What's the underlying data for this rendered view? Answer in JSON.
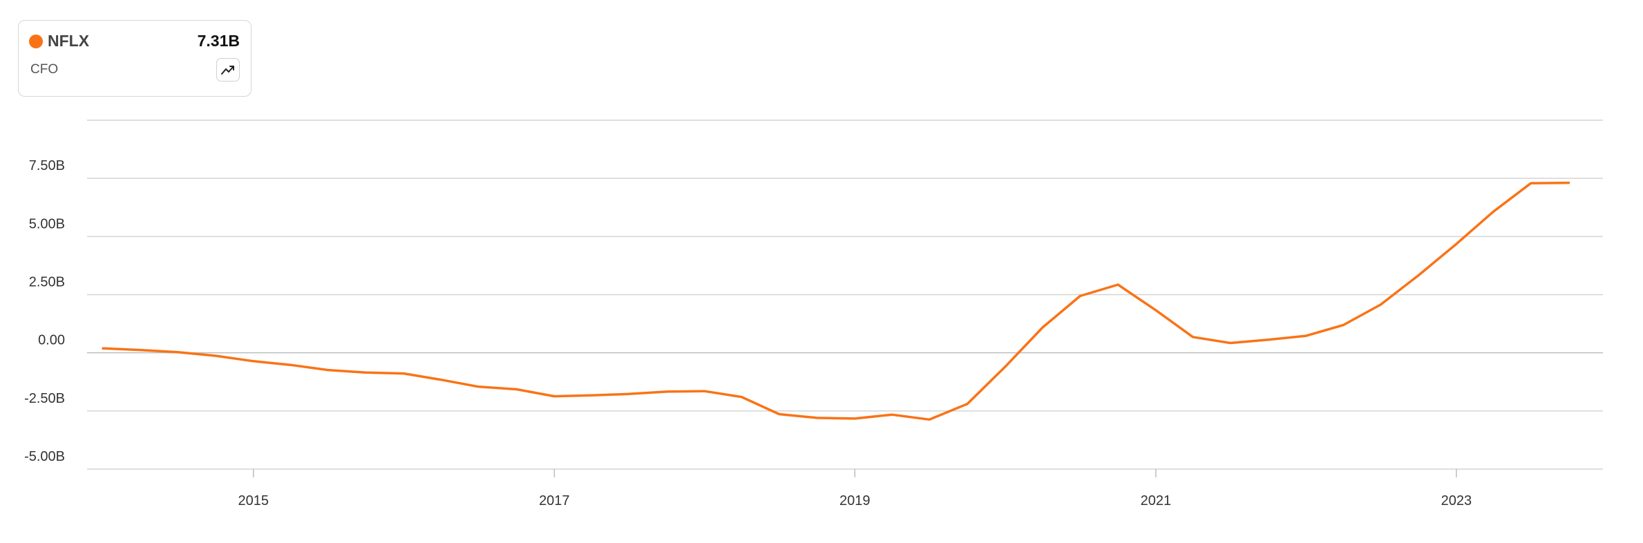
{
  "legend": {
    "ticker": "NFLX",
    "value": "7.31B",
    "metric": "CFO",
    "color": "#f97316",
    "trend_icon": "trending-up-icon"
  },
  "chart_data": {
    "type": "line",
    "title": "",
    "xlabel": "",
    "ylabel": "",
    "ylim": [
      -5.0,
      10.0
    ],
    "y_ticks": [
      {
        "value": 7.5,
        "label": "7.50B"
      },
      {
        "value": 5.0,
        "label": "5.00B"
      },
      {
        "value": 2.5,
        "label": "2.50B"
      },
      {
        "value": 0.0,
        "label": "0.00"
      },
      {
        "value": -2.5,
        "label": "-2.50B"
      },
      {
        "value": -5.0,
        "label": "-5.00B"
      }
    ],
    "x_range": [
      "2013-11-23",
      "2023-12-23"
    ],
    "x_ticks": [
      {
        "value": "2015-01-01",
        "label": "2015"
      },
      {
        "value": "2017-01-01",
        "label": "2017"
      },
      {
        "value": "2019-01-01",
        "label": "2019"
      },
      {
        "value": "2021-01-01",
        "label": "2021"
      },
      {
        "value": "2023-01-01",
        "label": "2023"
      }
    ],
    "grid": true,
    "series": [
      {
        "name": "NFLX",
        "color": "#f97316",
        "points": [
          {
            "x": "2014-01-01",
            "y": 0.19
          },
          {
            "x": "2014-04-01",
            "y": 0.12
          },
          {
            "x": "2014-07-01",
            "y": 0.03
          },
          {
            "x": "2014-10-01",
            "y": -0.13
          },
          {
            "x": "2015-01-01",
            "y": -0.36
          },
          {
            "x": "2015-04-01",
            "y": -0.52
          },
          {
            "x": "2015-07-01",
            "y": -0.74
          },
          {
            "x": "2015-10-01",
            "y": -0.85
          },
          {
            "x": "2016-01-01",
            "y": -0.89
          },
          {
            "x": "2016-04-01",
            "y": -1.16
          },
          {
            "x": "2016-07-01",
            "y": -1.46
          },
          {
            "x": "2016-10-01",
            "y": -1.57
          },
          {
            "x": "2017-01-01",
            "y": -1.87
          },
          {
            "x": "2017-04-01",
            "y": -1.83
          },
          {
            "x": "2017-07-01",
            "y": -1.77
          },
          {
            "x": "2017-10-01",
            "y": -1.67
          },
          {
            "x": "2018-01-01",
            "y": -1.65
          },
          {
            "x": "2018-04-01",
            "y": -1.9
          },
          {
            "x": "2018-07-01",
            "y": -2.64
          },
          {
            "x": "2018-10-01",
            "y": -2.8
          },
          {
            "x": "2019-01-01",
            "y": -2.83
          },
          {
            "x": "2019-04-01",
            "y": -2.66
          },
          {
            "x": "2019-07-01",
            "y": -2.87
          },
          {
            "x": "2019-10-01",
            "y": -2.2
          },
          {
            "x": "2020-01-01",
            "y": -0.6
          },
          {
            "x": "2020-04-01",
            "y": 1.09
          },
          {
            "x": "2020-07-01",
            "y": 2.44
          },
          {
            "x": "2020-10-01",
            "y": 2.93
          },
          {
            "x": "2021-01-01",
            "y": 1.83
          },
          {
            "x": "2021-04-01",
            "y": 0.68
          },
          {
            "x": "2021-07-01",
            "y": 0.42
          },
          {
            "x": "2021-10-01",
            "y": 0.56
          },
          {
            "x": "2022-01-01",
            "y": 0.73
          },
          {
            "x": "2022-04-01",
            "y": 1.19
          },
          {
            "x": "2022-07-01",
            "y": 2.07
          },
          {
            "x": "2022-10-01",
            "y": 3.33
          },
          {
            "x": "2023-01-01",
            "y": 4.68
          },
          {
            "x": "2023-04-01",
            "y": 6.07
          },
          {
            "x": "2023-07-01",
            "y": 7.29
          },
          {
            "x": "2023-10-01",
            "y": 7.31
          }
        ]
      }
    ]
  }
}
